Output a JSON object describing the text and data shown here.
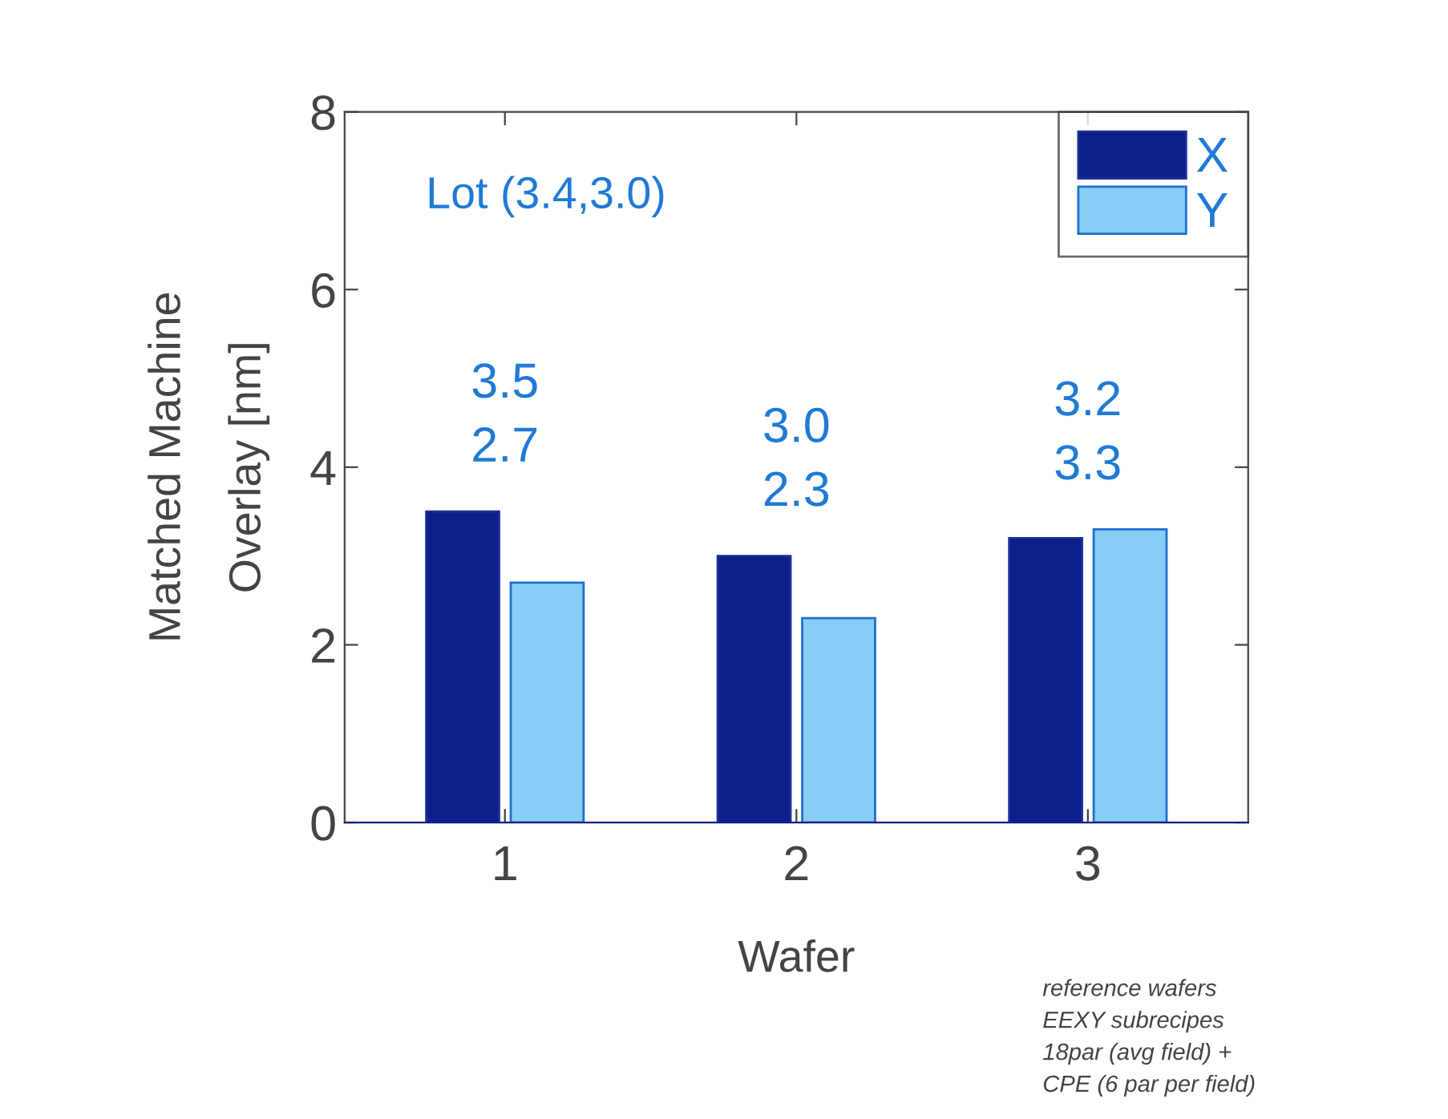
{
  "chart_data": {
    "type": "bar",
    "xlabel": "Wafer",
    "ylabel": "Matched Machine\nOverlay [nm]",
    "categories": [
      "1",
      "2",
      "3"
    ],
    "series": [
      {
        "name": "X",
        "color": "#0d1f8a",
        "values": [
          3.5,
          3.0,
          3.2
        ],
        "value_labels": [
          "3.5",
          "3.0",
          "3.2"
        ]
      },
      {
        "name": "Y",
        "color": "#87cdf5",
        "values": [
          2.7,
          2.3,
          3.3
        ],
        "value_labels": [
          "2.7",
          "2.3",
          "3.3"
        ]
      }
    ],
    "ylim": [
      0,
      8
    ],
    "yticks": [
      0,
      2,
      4,
      6,
      8
    ],
    "grid": false,
    "legend": "top right",
    "annotations": [
      "Lot (3.4,3.0)",
      "reference wafers\nEEXY subrecipes\n18par (avg field) +\nCPE (6 par per field)"
    ]
  }
}
